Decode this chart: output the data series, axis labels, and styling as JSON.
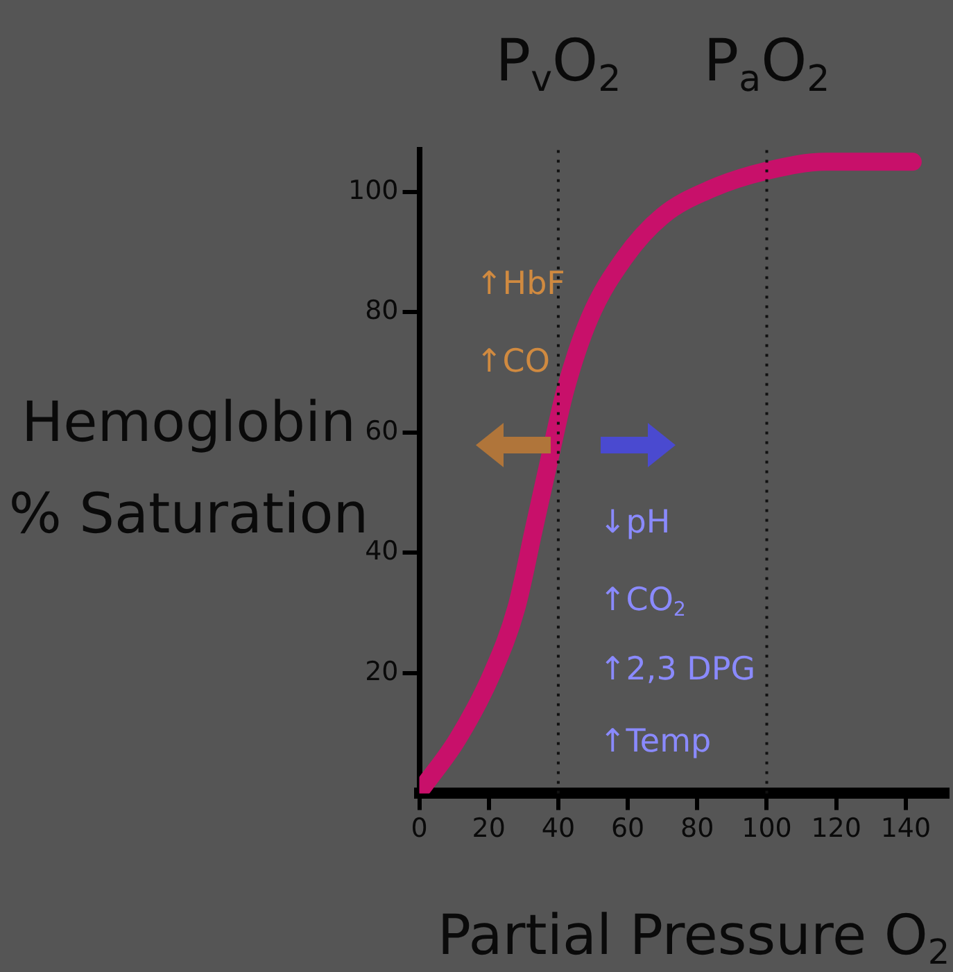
{
  "chart_data": {
    "type": "line",
    "xlabel": "Partial Pressure O$_{2}$",
    "ylabel": "Hemoglobin\n% Saturation",
    "x": [
      1,
      11,
      21,
      28,
      33,
      38,
      42,
      49,
      59,
      70,
      84,
      100,
      117,
      142
    ],
    "series": [
      {
        "color": "#c8106a",
        "values": [
          1,
          9,
          20,
          31,
          44,
          57,
          67,
          79,
          89,
          96,
          100.5,
          103.5,
          105,
          105
        ]
      }
    ],
    "xlim": [
      0,
      152
    ],
    "ylim": [
      0,
      107
    ],
    "xticks": [
      0,
      20,
      40,
      60,
      80,
      100,
      120,
      140
    ],
    "yticks": [
      20,
      40,
      60,
      80,
      100
    ],
    "marker": "none",
    "line_style": "solid",
    "ref_lines": [
      {
        "axis": "x",
        "value": 40,
        "label": "P$_{v}$O$_{2}$",
        "line_style": "dotted"
      },
      {
        "axis": "x",
        "value": 100,
        "label": "P$_{a}$O$_{2}$",
        "line_style": "dotted"
      }
    ],
    "annotations": [
      "↑HbF",
      "↑CO",
      "↓pH",
      "↑CO$_{2}$",
      "↑2,3 DPG",
      "↑Temp"
    ]
  }
}
